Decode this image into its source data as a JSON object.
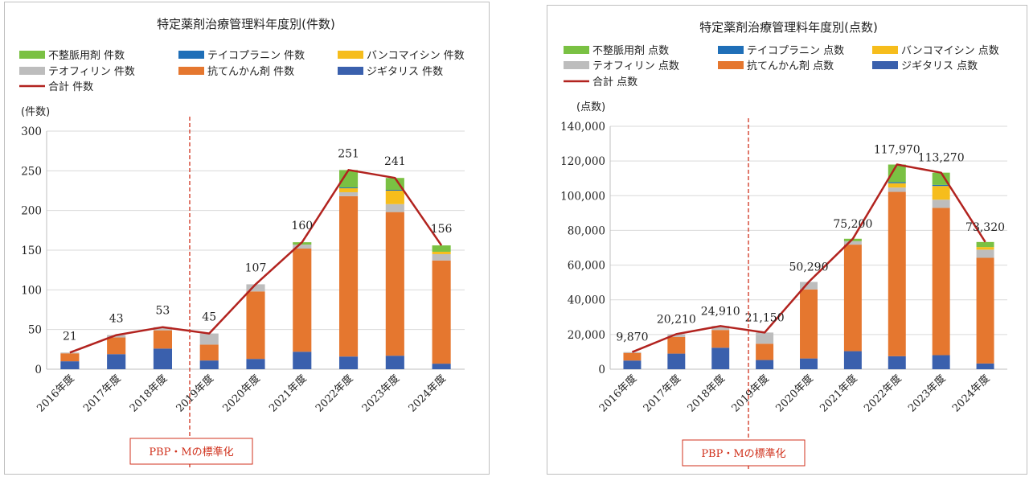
{
  "colors": {
    "fuseimyaku": "#7ac143",
    "teicoplanin": "#1f6fb8",
    "vancomycin": "#f6bd1c",
    "theophylline": "#bdbdbd",
    "antiepileptic": "#e5772f",
    "digitalis": "#3a60ad",
    "total": "#b2231f",
    "annotation": "#d0311c",
    "grid": "#d9d9d9"
  },
  "annotation": {
    "label": "PBP・Mの標準化"
  },
  "chart_data": [
    {
      "type": "bar",
      "stacked": true,
      "title": "特定薬剤治療管理料年度別(件数)",
      "ylabel": "(件数)",
      "ylim": [
        0,
        300
      ],
      "yticks": [
        0,
        50,
        100,
        150,
        200,
        250,
        300
      ],
      "ytick_labels": [
        "0",
        "50",
        "100",
        "150",
        "200",
        "250",
        "300"
      ],
      "grid": true,
      "categories": [
        "2016年度",
        "2017年度",
        "2018年度",
        "2019年度",
        "2020年度",
        "2021年度",
        "2022年度",
        "2023年度",
        "2024年度"
      ],
      "series": [
        {
          "name": "ジギタリス 件数",
          "color": "#3a60ad",
          "values": [
            10,
            19,
            26,
            11,
            13,
            22,
            16,
            17,
            7
          ]
        },
        {
          "name": "抗てんかん剤 件数",
          "color": "#e5772f",
          "values": [
            10,
            21,
            23,
            20,
            85,
            130,
            202,
            181,
            130
          ]
        },
        {
          "name": "テオフィリン 件数",
          "color": "#bdbdbd",
          "values": [
            1,
            3,
            4,
            14,
            9,
            5,
            5,
            10,
            8
          ]
        },
        {
          "name": "バンコマイシン 件数",
          "color": "#f6bd1c",
          "values": [
            0,
            0,
            0,
            0,
            0,
            0,
            5,
            17,
            3
          ]
        },
        {
          "name": "テイコプラニン 件数",
          "color": "#1f6fb8",
          "values": [
            0,
            0,
            0,
            0,
            0,
            0,
            1,
            1,
            0
          ]
        },
        {
          "name": "不整脈用剤 件数",
          "color": "#7ac143",
          "values": [
            0,
            0,
            0,
            0,
            0,
            3,
            22,
            15,
            8
          ]
        }
      ],
      "total": {
        "name": "合計 件数",
        "color": "#b2231f",
        "values": [
          21,
          43,
          53,
          45,
          107,
          160,
          251,
          241,
          156
        ],
        "labels": [
          "21",
          "43",
          "53",
          "45",
          "107",
          "160",
          "251",
          "241",
          "156"
        ]
      },
      "legend_placement": "top"
    },
    {
      "type": "bar",
      "stacked": true,
      "title": "特定薬剤治療管理料年度別(点数)",
      "ylabel": "(点数)",
      "ylim": [
        0,
        140000
      ],
      "yticks": [
        0,
        20000,
        40000,
        60000,
        80000,
        100000,
        120000,
        140000
      ],
      "ytick_labels": [
        "0",
        "20,000",
        "40,000",
        "60,000",
        "80,000",
        "100,000",
        "120,000",
        "140,000"
      ],
      "grid": true,
      "categories": [
        "2016年度",
        "2017年度",
        "2018年度",
        "2019年度",
        "2020年度",
        "2021年度",
        "2022年度",
        "2023年度",
        "2024年度"
      ],
      "series": [
        {
          "name": "ジギタリス 点数",
          "color": "#3a60ad",
          "values": [
            5000,
            9000,
            12400,
            5300,
            6200,
            10400,
            7500,
            8100,
            3300
          ]
        },
        {
          "name": "抗てんかん剤 点数",
          "color": "#e5772f",
          "values": [
            4400,
            9600,
            10200,
            9400,
            39800,
            61400,
            94700,
            84900,
            60900
          ]
        },
        {
          "name": "テオフィリン 点数",
          "color": "#bdbdbd",
          "values": [
            470,
            1610,
            2310,
            6450,
            4290,
            2000,
            2500,
            4700,
            4700
          ]
        },
        {
          "name": "バンコマイシン 点数",
          "color": "#f6bd1c",
          "values": [
            0,
            0,
            0,
            0,
            0,
            0,
            2500,
            7900,
            1500
          ]
        },
        {
          "name": "テイコプラニン 点数",
          "color": "#1f6fb8",
          "values": [
            0,
            0,
            0,
            0,
            0,
            0,
            600,
            600,
            0
          ]
        },
        {
          "name": "不整脈用剤 点数",
          "color": "#7ac143",
          "values": [
            0,
            0,
            0,
            0,
            0,
            1400,
            10170,
            7070,
            2920
          ]
        }
      ],
      "total": {
        "name": "合計 点数",
        "color": "#b2231f",
        "values": [
          9870,
          20210,
          24910,
          21150,
          50290,
          75200,
          117970,
          113270,
          73320
        ],
        "labels": [
          "9,870",
          "20,210",
          "24,910",
          "21,150",
          "50,290",
          "75,200",
          "117,970",
          "113,270",
          "73,320"
        ]
      },
      "legend_placement": "top"
    }
  ]
}
